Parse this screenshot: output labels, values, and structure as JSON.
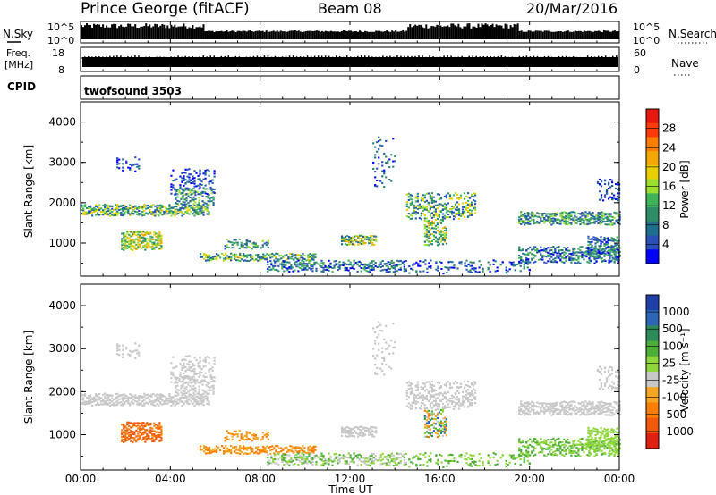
{
  "header": {
    "station": "Prince George (fitACF)",
    "beam": "Beam 08",
    "date": "20/Mar/2016"
  },
  "panel_sky": {
    "left_label": "N.Sky",
    "tick_top": "10^5",
    "tick_bottom": "10^0",
    "right_label": "N.Search"
  },
  "panel_freq": {
    "left_label_1": "Freq.",
    "left_label_2": "[MHz]",
    "tick_top": "18",
    "tick_bottom": "8",
    "right_tick_top": "60",
    "right_tick_bottom": "0",
    "right_label": "Nave"
  },
  "panel_cpid": {
    "label": "CPID",
    "program": "twofsound 3503"
  },
  "power_colorbar": {
    "title": "Power [dB]",
    "ticks": [
      "28",
      "24",
      "20",
      "16",
      "12",
      "8",
      "4"
    ],
    "colors": [
      "#e8170f",
      "#ff3a0a",
      "#ff7d00",
      "#f5a800",
      "#e8d000",
      "#9be02e",
      "#3fb35a",
      "#2e8c66",
      "#1f6e8c",
      "#2b4fb8",
      "#0000ff"
    ]
  },
  "velocity_colorbar": {
    "title": "Velocity [m s⁻¹]",
    "ticks": [
      "1000",
      "500",
      "100",
      "25",
      "-25",
      "-100",
      "-500",
      "-1000"
    ],
    "colors": [
      "#1f3fa8",
      "#2d66b8",
      "#2f8a5a",
      "#4fae3a",
      "#8ed63a",
      "#c8c8c8",
      "#f5a623",
      "#ff7d00",
      "#f05a0a",
      "#e02010"
    ]
  },
  "chart_data": [
    {
      "type": "heatmap",
      "title": "Power",
      "ylabel": "Slant Range [km]",
      "xlabel": "Time UT",
      "ylim": [
        180,
        4500
      ],
      "yticks": [
        "1000",
        "2000",
        "3000",
        "4000"
      ],
      "xticks": [
        "00:00",
        "04:00",
        "08:00",
        "12:00",
        "16:00",
        "20:00",
        "00:00"
      ],
      "colorbar_label": "Power [dB]"
    },
    {
      "type": "heatmap",
      "title": "Velocity",
      "ylabel": "Slant Range [km]",
      "xlabel": "Time UT",
      "ylim": [
        180,
        4500
      ],
      "yticks": [
        "1000",
        "2000",
        "3000",
        "4000"
      ],
      "xticks": [
        "00:00",
        "04:00",
        "08:00",
        "12:00",
        "16:00",
        "20:00",
        "00:00"
      ],
      "colorbar_label": "Velocity [m s⁻¹]"
    }
  ],
  "x_axis": {
    "title": "Time UT",
    "ticks": [
      "00:00",
      "04:00",
      "08:00",
      "12:00",
      "16:00",
      "20:00",
      "00:00"
    ]
  }
}
